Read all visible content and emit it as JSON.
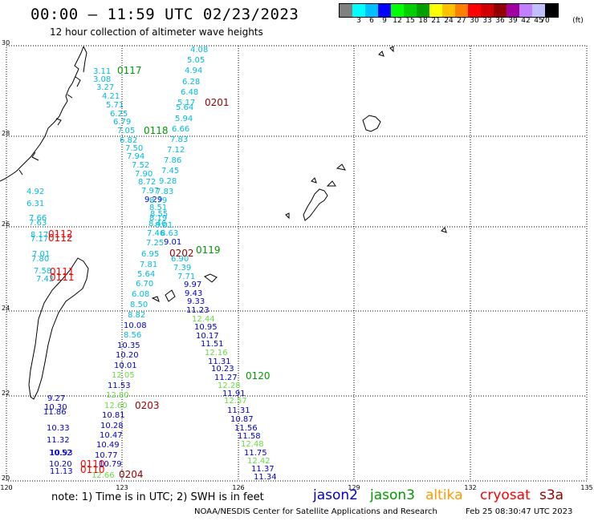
{
  "header": {
    "title": "00:00 – 11:59 UTC 02/23/2023",
    "subtitle": "12 hour collection of altimeter wave heights"
  },
  "colorbar": {
    "unit_label": "(ft)",
    "colors": [
      "#808080",
      "#00ffff",
      "#00bfff",
      "#0000ff",
      "#00ff00",
      "#00d000",
      "#00a000",
      "#ffff00",
      "#ffc000",
      "#ff8000",
      "#ff0000",
      "#d00000",
      "#900000",
      "#a000a0",
      "#c080ff",
      "#c0c0ff",
      "#000000"
    ],
    "labels": [
      "",
      "3",
      "6",
      "9",
      "12",
      "15",
      "18",
      "21",
      "24",
      "27",
      "30",
      "33",
      "36",
      "39",
      "42",
      "45",
      "70"
    ]
  },
  "axes": {
    "lon_labels": [
      "120",
      "123",
      "126",
      "129",
      "132",
      "135"
    ],
    "lat_labels": [
      "30",
      "28",
      "26",
      "24",
      "22",
      "20"
    ]
  },
  "legend": {
    "note": "note:  1) Time is in UTC; 2) SWH is in feet",
    "sats": [
      {
        "name": "jason2",
        "color": "#0000cc"
      },
      {
        "name": "jason3",
        "color": "#009900"
      },
      {
        "name": "altika",
        "color": "#ff9900"
      },
      {
        "name": "cryosat",
        "color": "#ff0000"
      },
      {
        "name": "s3a",
        "color": "#990000"
      }
    ]
  },
  "footer": {
    "credit": "NOAA/NESDIS Center for Satellite Applications and Research",
    "timestamp": "Feb 25 08:30:47 UTC 2023"
  },
  "colors": {
    "cyan": "#00bbdd",
    "blue": "#0000cc",
    "lightgreen": "#66dd44",
    "green": "#009900",
    "red": "#ff0000",
    "darkred": "#990000"
  },
  "track_labels": [
    {
      "text": "0117",
      "color": "#009900"
    },
    {
      "text": "0201",
      "color": "#990000"
    },
    {
      "text": "0118",
      "color": "#009900"
    },
    {
      "text": "0119",
      "color": "#009900"
    },
    {
      "text": "0202",
      "color": "#990000"
    },
    {
      "text": "0120",
      "color": "#009900"
    },
    {
      "text": "0203",
      "color": "#990000"
    },
    {
      "text": "0204",
      "color": "#990000"
    },
    {
      "text": "0112",
      "color": "#ff0000"
    },
    {
      "text": "0112",
      "color": "#ff0000"
    },
    {
      "text": "0111",
      "color": "#ff0000"
    },
    {
      "text": "0111",
      "color": "#ff0000"
    },
    {
      "text": "0110",
      "color": "#ff0000"
    },
    {
      "text": "0110",
      "color": "#ff0000"
    }
  ],
  "wave_values": [
    {
      "text": "4.08",
      "color": "#00bbdd"
    },
    {
      "text": "5.05",
      "color": "#00bbdd"
    },
    {
      "text": "4.94",
      "color": "#00bbdd"
    },
    {
      "text": "6.28",
      "color": "#00bbdd"
    },
    {
      "text": "6.48",
      "color": "#00bbdd"
    },
    {
      "text": "5.17",
      "color": "#00bbdd"
    },
    {
      "text": "5.64",
      "color": "#00bbdd"
    },
    {
      "text": "5.94",
      "color": "#00bbdd"
    },
    {
      "text": "6.66",
      "color": "#00bbdd"
    },
    {
      "text": "7.83",
      "color": "#00bbdd"
    },
    {
      "text": "7.12",
      "color": "#00bbdd"
    },
    {
      "text": "7.86",
      "color": "#00bbdd"
    },
    {
      "text": "7.45",
      "color": "#00bbdd"
    },
    {
      "text": "9.28",
      "color": "#00bbdd"
    },
    {
      "text": "7.83",
      "color": "#00bbdd"
    },
    {
      "text": "3.11",
      "color": "#00bbdd"
    },
    {
      "text": "3.08",
      "color": "#00bbdd"
    },
    {
      "text": "3.27",
      "color": "#00bbdd"
    },
    {
      "text": "4.21",
      "color": "#00bbdd"
    },
    {
      "text": "5.71",
      "color": "#00bbdd"
    },
    {
      "text": "6.25",
      "color": "#00bbdd"
    },
    {
      "text": "6.79",
      "color": "#00bbdd"
    },
    {
      "text": "7.05",
      "color": "#00bbdd"
    },
    {
      "text": "6.82",
      "color": "#00bbdd"
    },
    {
      "text": "7.50",
      "color": "#00bbdd"
    },
    {
      "text": "7.94",
      "color": "#00bbdd"
    },
    {
      "text": "7.52",
      "color": "#00bbdd"
    },
    {
      "text": "7.90",
      "color": "#00bbdd"
    },
    {
      "text": "8.72",
      "color": "#00bbdd"
    },
    {
      "text": "7.97",
      "color": "#00bbdd"
    },
    {
      "text": "9.29",
      "color": "#0000cc"
    },
    {
      "text": "8.79",
      "color": "#00bbdd"
    },
    {
      "text": "8.51",
      "color": "#00bbdd"
    },
    {
      "text": "8.55",
      "color": "#00bbdd"
    },
    {
      "text": "8.19",
      "color": "#00bbdd"
    },
    {
      "text": "8.46",
      "color": "#00bbdd"
    },
    {
      "text": "8.01",
      "color": "#00bbdd"
    },
    {
      "text": "7.46",
      "color": "#00bbdd"
    },
    {
      "text": "8.63",
      "color": "#00bbdd"
    },
    {
      "text": "7.25",
      "color": "#00bbdd"
    },
    {
      "text": "9.01",
      "color": "#0000cc"
    },
    {
      "text": "6.95",
      "color": "#00bbdd"
    },
    {
      "text": "6.90",
      "color": "#00bbdd"
    },
    {
      "text": "7.81",
      "color": "#00bbdd"
    },
    {
      "text": "7.39",
      "color": "#00bbdd"
    },
    {
      "text": "5.64",
      "color": "#00bbdd"
    },
    {
      "text": "7.71",
      "color": "#00bbdd"
    },
    {
      "text": "6.70",
      "color": "#00bbdd"
    },
    {
      "text": "9.97",
      "color": "#0000cc"
    },
    {
      "text": "6.08",
      "color": "#00bbdd"
    },
    {
      "text": "9.43",
      "color": "#0000cc"
    },
    {
      "text": "8.50",
      "color": "#00bbdd"
    },
    {
      "text": "9.33",
      "color": "#0000cc"
    },
    {
      "text": "8.82",
      "color": "#00bbdd"
    },
    {
      "text": "11.23",
      "color": "#0000cc"
    },
    {
      "text": "12.44",
      "color": "#66dd44"
    },
    {
      "text": "10.08",
      "color": "#0000cc"
    },
    {
      "text": "10.95",
      "color": "#0000cc"
    },
    {
      "text": "8.56",
      "color": "#00bbdd"
    },
    {
      "text": "10.17",
      "color": "#0000cc"
    },
    {
      "text": "10.35",
      "color": "#0000cc"
    },
    {
      "text": "11.51",
      "color": "#0000cc"
    },
    {
      "text": "10.20",
      "color": "#0000cc"
    },
    {
      "text": "12.16",
      "color": "#66dd44"
    },
    {
      "text": "10.01",
      "color": "#0000cc"
    },
    {
      "text": "11.31",
      "color": "#0000cc"
    },
    {
      "text": "12.05",
      "color": "#66dd44"
    },
    {
      "text": "10.23",
      "color": "#0000cc"
    },
    {
      "text": "11.27",
      "color": "#0000cc"
    },
    {
      "text": "11.53",
      "color": "#0000cc"
    },
    {
      "text": "12.28",
      "color": "#66dd44"
    },
    {
      "text": "12.80",
      "color": "#66dd44"
    },
    {
      "text": "11.91",
      "color": "#0000cc"
    },
    {
      "text": "12.60",
      "color": "#66dd44"
    },
    {
      "text": "12.57",
      "color": "#66dd44"
    },
    {
      "text": "11.31",
      "color": "#0000cc"
    },
    {
      "text": "10.81",
      "color": "#0000cc"
    },
    {
      "text": "10.87",
      "color": "#0000cc"
    },
    {
      "text": "10.28",
      "color": "#0000cc"
    },
    {
      "text": "11.56",
      "color": "#0000cc"
    },
    {
      "text": "10.47",
      "color": "#0000cc"
    },
    {
      "text": "11.58",
      "color": "#0000cc"
    },
    {
      "text": "10.49",
      "color": "#0000cc"
    },
    {
      "text": "12.48",
      "color": "#66dd44"
    },
    {
      "text": "10.77",
      "color": "#0000cc"
    },
    {
      "text": "11.75",
      "color": "#0000cc"
    },
    {
      "text": "10.79",
      "color": "#0000cc"
    },
    {
      "text": "12.42",
      "color": "#66dd44"
    },
    {
      "text": "11.37",
      "color": "#0000cc"
    },
    {
      "text": "11.34",
      "color": "#0000cc"
    },
    {
      "text": "12.66",
      "color": "#66dd44"
    },
    {
      "text": "9.27",
      "color": "#0000cc"
    },
    {
      "text": "10.30",
      "color": "#0000cc"
    },
    {
      "text": "11.86",
      "color": "#0000cc"
    },
    {
      "text": "10.33",
      "color": "#0000cc"
    },
    {
      "text": "11.32",
      "color": "#0000cc"
    },
    {
      "text": "10.93",
      "color": "#0000cc"
    },
    {
      "text": "10.52",
      "color": "#0000cc"
    },
    {
      "text": "10.20",
      "color": "#0000cc"
    },
    {
      "text": "11.13",
      "color": "#0000cc"
    },
    {
      "text": "4.92",
      "color": "#00bbdd"
    },
    {
      "text": "6.31",
      "color": "#00bbdd"
    },
    {
      "text": "7.66",
      "color": "#00bbdd"
    },
    {
      "text": "7.63",
      "color": "#00bbdd"
    },
    {
      "text": "8.17",
      "color": "#00bbdd"
    },
    {
      "text": "7.17",
      "color": "#00bbdd"
    },
    {
      "text": "7.01",
      "color": "#00bbdd"
    },
    {
      "text": "7.80",
      "color": "#00bbdd"
    },
    {
      "text": "7.58",
      "color": "#00bbdd"
    },
    {
      "text": "7.42",
      "color": "#00bbdd"
    }
  ]
}
